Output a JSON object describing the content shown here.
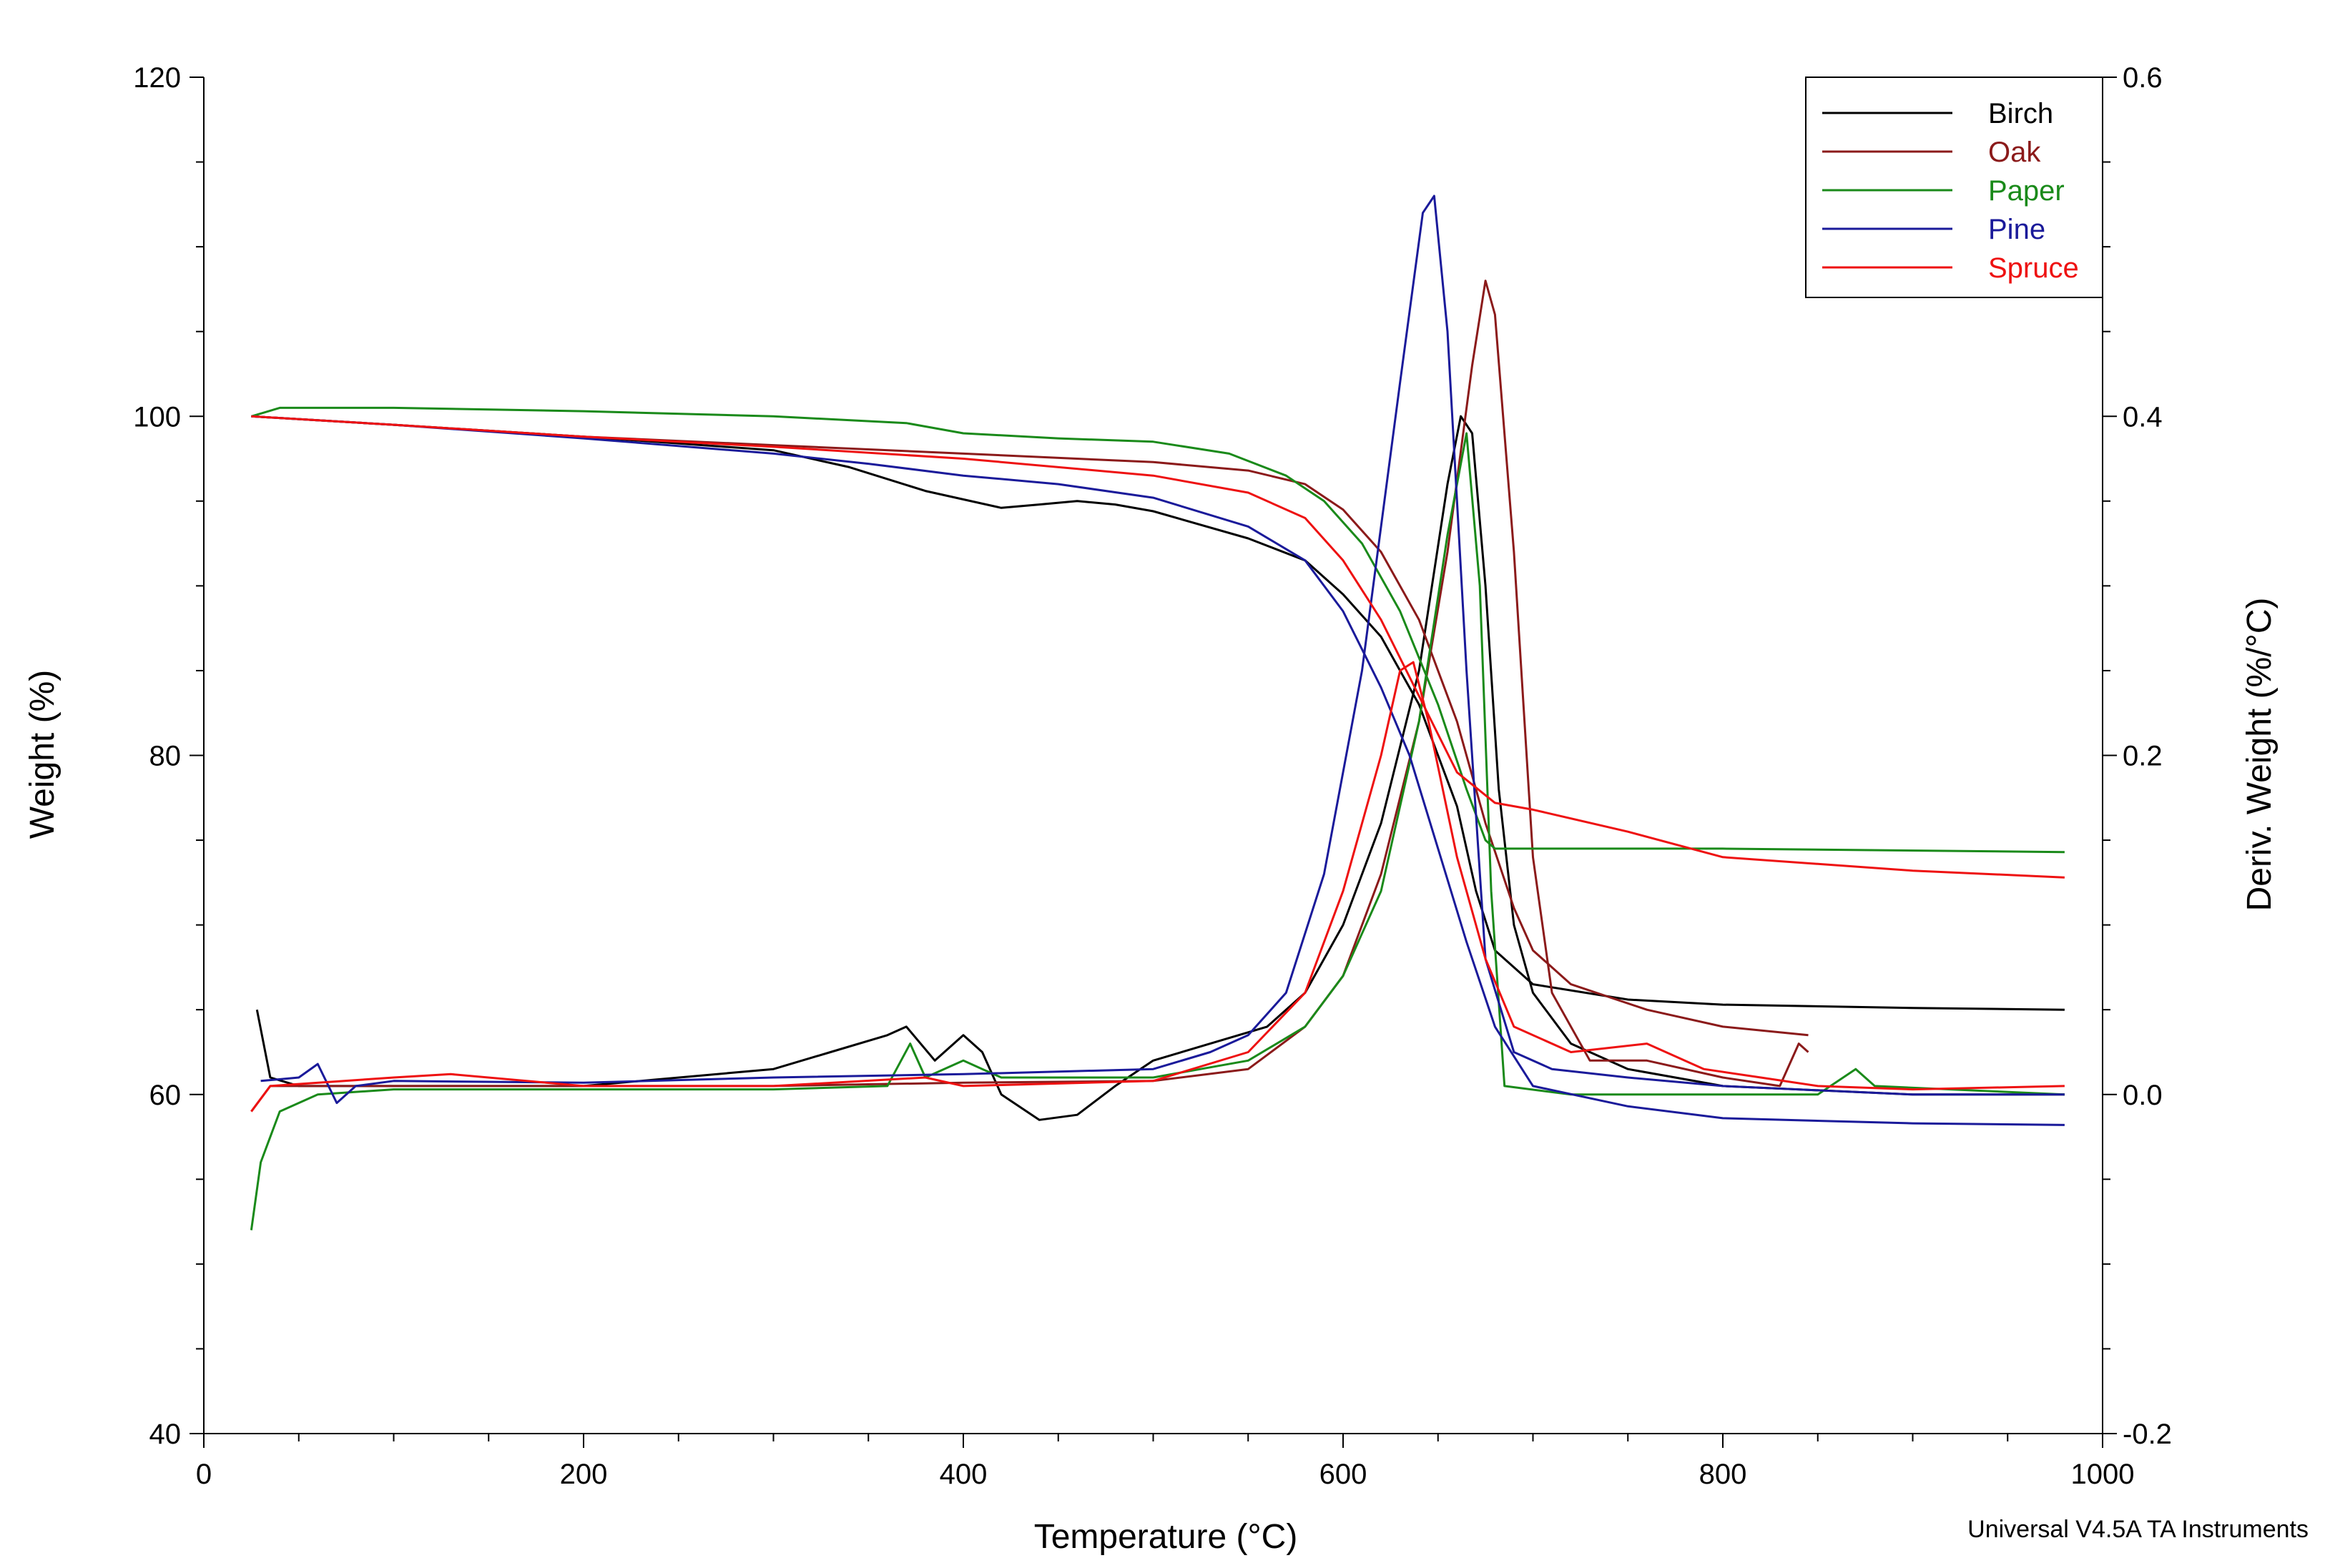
{
  "chart_data": {
    "type": "line",
    "title": "",
    "xlabel": "Temperature (°C)",
    "ylabel_left": "Weight (%)",
    "ylabel_right": "Deriv. Weight (%/°C)",
    "xlim": [
      0,
      1000
    ],
    "ylim_left": [
      40,
      120
    ],
    "ylim_right": [
      -0.2,
      0.6
    ],
    "x_ticks": [
      "0",
      "200",
      "400",
      "600",
      "800",
      "1000"
    ],
    "y_left_ticks": [
      "40",
      "60",
      "80",
      "100",
      "120"
    ],
    "y_right_ticks": [
      "-0.2",
      "0.0",
      "0.2",
      "0.4",
      "0.6"
    ],
    "grid": false,
    "legend_position": "top-right",
    "footer": "Universal V4.5A TA Instruments",
    "series": [
      {
        "name": "Birch",
        "color": "#000000",
        "weight": [
          [
            25,
            100
          ],
          [
            100,
            99.5
          ],
          [
            200,
            98.8
          ],
          [
            300,
            98
          ],
          [
            340,
            97
          ],
          [
            380,
            95.6
          ],
          [
            420,
            94.6
          ],
          [
            440,
            94.8
          ],
          [
            460,
            95
          ],
          [
            480,
            94.8
          ],
          [
            500,
            94.4
          ],
          [
            550,
            92.8
          ],
          [
            580,
            91.5
          ],
          [
            600,
            89.5
          ],
          [
            620,
            87
          ],
          [
            640,
            83
          ],
          [
            660,
            77
          ],
          [
            670,
            72
          ],
          [
            680,
            68.5
          ],
          [
            700,
            66.5
          ],
          [
            750,
            65.6
          ],
          [
            800,
            65.3
          ],
          [
            900,
            65.1
          ],
          [
            980,
            65
          ]
        ],
        "deriv": [
          [
            28,
            0.05
          ],
          [
            35,
            0.01
          ],
          [
            50,
            0.005
          ],
          [
            100,
            0.005
          ],
          [
            200,
            0.005
          ],
          [
            300,
            0.015
          ],
          [
            330,
            0.025
          ],
          [
            360,
            0.035
          ],
          [
            370,
            0.04
          ],
          [
            385,
            0.02
          ],
          [
            400,
            0.035
          ],
          [
            410,
            0.025
          ],
          [
            420,
            0.0
          ],
          [
            440,
            -0.015
          ],
          [
            460,
            -0.012
          ],
          [
            480,
            0.005
          ],
          [
            500,
            0.02
          ],
          [
            530,
            0.03
          ],
          [
            560,
            0.04
          ],
          [
            580,
            0.06
          ],
          [
            600,
            0.1
          ],
          [
            620,
            0.16
          ],
          [
            640,
            0.25
          ],
          [
            655,
            0.36
          ],
          [
            662,
            0.4
          ],
          [
            668,
            0.39
          ],
          [
            675,
            0.3
          ],
          [
            682,
            0.18
          ],
          [
            690,
            0.1
          ],
          [
            700,
            0.06
          ],
          [
            720,
            0.03
          ],
          [
            750,
            0.015
          ],
          [
            800,
            0.005
          ],
          [
            900,
            0.0
          ],
          [
            980,
            0.0
          ]
        ]
      },
      {
        "name": "Oak",
        "color": "#8b1a1a",
        "weight": [
          [
            25,
            100
          ],
          [
            100,
            99.5
          ],
          [
            200,
            98.8
          ],
          [
            300,
            98.3
          ],
          [
            400,
            97.8
          ],
          [
            500,
            97.3
          ],
          [
            550,
            96.8
          ],
          [
            580,
            96
          ],
          [
            600,
            94.5
          ],
          [
            620,
            92
          ],
          [
            640,
            88
          ],
          [
            660,
            82
          ],
          [
            675,
            76
          ],
          [
            690,
            71
          ],
          [
            700,
            68.5
          ],
          [
            720,
            66.5
          ],
          [
            760,
            65
          ],
          [
            800,
            64
          ],
          [
            845,
            63.5
          ]
        ],
        "deriv": [
          [
            25,
            -0.01
          ],
          [
            35,
            0.005
          ],
          [
            100,
            0.005
          ],
          [
            200,
            0.005
          ],
          [
            300,
            0.005
          ],
          [
            400,
            0.007
          ],
          [
            500,
            0.008
          ],
          [
            550,
            0.015
          ],
          [
            580,
            0.04
          ],
          [
            600,
            0.07
          ],
          [
            620,
            0.13
          ],
          [
            640,
            0.22
          ],
          [
            655,
            0.32
          ],
          [
            668,
            0.43
          ],
          [
            675,
            0.48
          ],
          [
            680,
            0.46
          ],
          [
            690,
            0.32
          ],
          [
            700,
            0.14
          ],
          [
            710,
            0.06
          ],
          [
            730,
            0.02
          ],
          [
            760,
            0.02
          ],
          [
            800,
            0.01
          ],
          [
            830,
            0.005
          ],
          [
            840,
            0.03
          ],
          [
            845,
            0.025
          ]
        ]
      },
      {
        "name": "Paper",
        "color": "#1a8a1a",
        "weight": [
          [
            25,
            100
          ],
          [
            40,
            100.5
          ],
          [
            100,
            100.5
          ],
          [
            200,
            100.3
          ],
          [
            300,
            100
          ],
          [
            370,
            99.6
          ],
          [
            400,
            99
          ],
          [
            450,
            98.7
          ],
          [
            500,
            98.5
          ],
          [
            540,
            97.8
          ],
          [
            570,
            96.5
          ],
          [
            590,
            95
          ],
          [
            610,
            92.5
          ],
          [
            630,
            88.5
          ],
          [
            650,
            83
          ],
          [
            665,
            78
          ],
          [
            675,
            75
          ],
          [
            680,
            74.5
          ],
          [
            800,
            74.5
          ],
          [
            980,
            74.3
          ]
        ],
        "deriv": [
          [
            25,
            -0.08
          ],
          [
            30,
            -0.04
          ],
          [
            40,
            -0.01
          ],
          [
            60,
            0.0
          ],
          [
            100,
            0.003
          ],
          [
            200,
            0.003
          ],
          [
            300,
            0.003
          ],
          [
            360,
            0.005
          ],
          [
            372,
            0.03
          ],
          [
            380,
            0.01
          ],
          [
            400,
            0.02
          ],
          [
            410,
            0.015
          ],
          [
            420,
            0.01
          ],
          [
            500,
            0.01
          ],
          [
            550,
            0.02
          ],
          [
            580,
            0.04
          ],
          [
            600,
            0.07
          ],
          [
            620,
            0.12
          ],
          [
            640,
            0.22
          ],
          [
            655,
            0.33
          ],
          [
            665,
            0.39
          ],
          [
            672,
            0.3
          ],
          [
            678,
            0.12
          ],
          [
            685,
            0.005
          ],
          [
            720,
            0.0
          ],
          [
            850,
            0.0
          ],
          [
            870,
            0.015
          ],
          [
            880,
            0.005
          ],
          [
            980,
            0.0
          ]
        ]
      },
      {
        "name": "Pine",
        "color": "#1a1a9a",
        "weight": [
          [
            25,
            100
          ],
          [
            100,
            99.5
          ],
          [
            200,
            98.7
          ],
          [
            300,
            97.8
          ],
          [
            350,
            97.2
          ],
          [
            400,
            96.5
          ],
          [
            450,
            96
          ],
          [
            500,
            95.2
          ],
          [
            550,
            93.5
          ],
          [
            580,
            91.5
          ],
          [
            600,
            88.5
          ],
          [
            620,
            84
          ],
          [
            635,
            80
          ],
          [
            650,
            74.5
          ],
          [
            665,
            69
          ],
          [
            680,
            64
          ],
          [
            700,
            60.5
          ],
          [
            750,
            59.3
          ],
          [
            800,
            58.6
          ],
          [
            900,
            58.3
          ],
          [
            980,
            58.2
          ]
        ],
        "deriv": [
          [
            30,
            0.008
          ],
          [
            50,
            0.01
          ],
          [
            60,
            0.018
          ],
          [
            70,
            -0.005
          ],
          [
            80,
            0.005
          ],
          [
            100,
            0.008
          ],
          [
            200,
            0.007
          ],
          [
            300,
            0.01
          ],
          [
            400,
            0.012
          ],
          [
            500,
            0.015
          ],
          [
            530,
            0.025
          ],
          [
            550,
            0.035
          ],
          [
            570,
            0.06
          ],
          [
            590,
            0.13
          ],
          [
            610,
            0.25
          ],
          [
            630,
            0.42
          ],
          [
            642,
            0.52
          ],
          [
            648,
            0.53
          ],
          [
            655,
            0.45
          ],
          [
            665,
            0.25
          ],
          [
            675,
            0.08
          ],
          [
            690,
            0.025
          ],
          [
            710,
            0.015
          ],
          [
            750,
            0.01
          ],
          [
            800,
            0.005
          ],
          [
            900,
            0.0
          ],
          [
            980,
            0.0
          ]
        ]
      },
      {
        "name": "Spruce",
        "color": "#ee1111",
        "weight": [
          [
            25,
            100
          ],
          [
            100,
            99.5
          ],
          [
            200,
            98.8
          ],
          [
            300,
            98.2
          ],
          [
            400,
            97.5
          ],
          [
            500,
            96.5
          ],
          [
            550,
            95.5
          ],
          [
            580,
            94
          ],
          [
            600,
            91.5
          ],
          [
            620,
            88
          ],
          [
            640,
            83.5
          ],
          [
            660,
            79
          ],
          [
            680,
            77.2
          ],
          [
            700,
            76.8
          ],
          [
            750,
            75.5
          ],
          [
            800,
            74
          ],
          [
            900,
            73.2
          ],
          [
            980,
            72.8
          ]
        ],
        "deriv": [
          [
            25,
            -0.01
          ],
          [
            35,
            0.005
          ],
          [
            100,
            0.01
          ],
          [
            130,
            0.012
          ],
          [
            200,
            0.005
          ],
          [
            300,
            0.005
          ],
          [
            380,
            0.01
          ],
          [
            400,
            0.005
          ],
          [
            500,
            0.008
          ],
          [
            550,
            0.025
          ],
          [
            580,
            0.06
          ],
          [
            600,
            0.12
          ],
          [
            620,
            0.2
          ],
          [
            630,
            0.25
          ],
          [
            637,
            0.255
          ],
          [
            645,
            0.22
          ],
          [
            660,
            0.14
          ],
          [
            675,
            0.08
          ],
          [
            690,
            0.04
          ],
          [
            720,
            0.025
          ],
          [
            760,
            0.03
          ],
          [
            790,
            0.015
          ],
          [
            820,
            0.01
          ],
          [
            850,
            0.005
          ],
          [
            900,
            0.003
          ],
          [
            980,
            0.005
          ]
        ]
      }
    ]
  }
}
